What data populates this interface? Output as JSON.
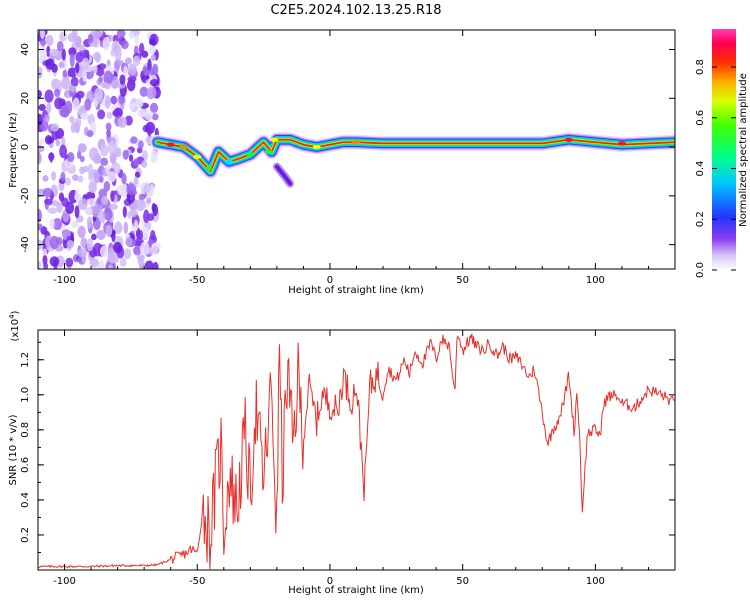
{
  "title": "C2E5.2024.102.13.25.R18",
  "colors": {
    "snr_line": "#e8302a",
    "ridge_red": "#e8102a",
    "axis": "#000000"
  },
  "chart_data": [
    {
      "type": "heatmap",
      "name": "spectrogram",
      "xlabel": "Height of straight line (km)",
      "ylabel": "Frequency (Hz)",
      "xlim": [
        -110,
        130
      ],
      "ylim": [
        -50,
        48
      ],
      "x_ticks": [
        -100,
        -50,
        0,
        50,
        100
      ],
      "x_tick_labels": [
        "-100",
        "-50",
        "0",
        "50",
        "100"
      ],
      "y_ticks": [
        -40,
        -20,
        0,
        20,
        40
      ],
      "y_tick_labels": [
        "-40",
        "-20",
        "0",
        "20",
        "40"
      ],
      "noise_region_x": [
        -110,
        -65
      ],
      "ridge": {
        "x": [
          -65,
          -60,
          -55,
          -50,
          -45,
          -42,
          -38,
          -35,
          -30,
          -25,
          -22,
          -20,
          -15,
          -10,
          -5,
          0,
          5,
          10,
          20,
          40,
          60,
          80,
          90,
          100,
          110,
          120,
          130
        ],
        "freq": [
          2,
          1,
          0,
          -4,
          -10,
          -2,
          -6,
          -5,
          -3,
          2,
          -2,
          3,
          3,
          1,
          0,
          1,
          2,
          2,
          1.5,
          1.5,
          1.5,
          1.5,
          3,
          2,
          1,
          1.5,
          2
        ]
      },
      "branch": {
        "x": [
          -20,
          -17,
          -15
        ],
        "freq": [
          -8,
          -12,
          -15
        ]
      },
      "colorbar": {
        "label": "Normalized spectral amplitude",
        "ticks": [
          0.0,
          0.2,
          0.4,
          0.6,
          0.8
        ],
        "tick_labels": [
          "0.0",
          "0.2",
          "0.4",
          "0.6",
          "0.8"
        ],
        "range": [
          0,
          0.95
        ],
        "colormap": "rainbow (white-purple-blue-cyan-green-yellow-orange-red-magenta)"
      }
    },
    {
      "type": "line",
      "name": "snr",
      "xlabel": "Height of straight line (km)",
      "ylabel": "SNR (10 * v/v)",
      "y_multiplier_label": "(x10",
      "y_multiplier_exp": "4",
      "y_multiplier_close": ")",
      "xlim": [
        -110,
        130
      ],
      "ylim": [
        0,
        1.37
      ],
      "x_ticks": [
        -100,
        -50,
        0,
        50,
        100
      ],
      "x_tick_labels": [
        "-100",
        "-50",
        "0",
        "50",
        "100"
      ],
      "y_ticks": [
        0.2,
        0.4,
        0.6,
        0.8,
        1.0,
        1.2
      ],
      "y_tick_labels": [
        "0.2",
        "0.4",
        "0.6",
        "0.8",
        "1.0",
        "1.2"
      ],
      "series": [
        {
          "name": "SNR",
          "x": [
            -110,
            -100,
            -90,
            -80,
            -70,
            -65,
            -60,
            -55,
            -52,
            -50,
            -48,
            -45,
            -43,
            -41,
            -40,
            -38,
            -35,
            -32,
            -30,
            -28,
            -25,
            -22,
            -20,
            -19,
            -18,
            -16,
            -14,
            -12,
            -10,
            -8,
            -5,
            -3,
            0,
            3,
            5,
            8,
            10,
            13,
            15,
            18,
            20,
            22,
            25,
            28,
            30,
            32,
            35,
            38,
            40,
            42,
            45,
            47,
            48,
            50,
            53,
            55,
            58,
            60,
            63,
            65,
            68,
            70,
            72,
            75,
            77,
            80,
            82,
            84,
            86,
            88,
            90,
            92,
            93,
            94,
            95,
            97,
            100,
            102,
            103,
            105,
            108,
            110,
            115,
            120,
            125,
            130
          ],
          "y": [
            0.02,
            0.02,
            0.02,
            0.025,
            0.025,
            0.03,
            0.06,
            0.09,
            0.12,
            0.09,
            0.34,
            0.2,
            0.5,
            0.72,
            0.22,
            0.55,
            0.35,
            0.78,
            0.42,
            0.95,
            0.5,
            1.05,
            0.2,
            1.36,
            0.5,
            1.15,
            0.7,
            1.1,
            0.75,
            1.05,
            0.85,
            1.0,
            0.95,
            0.9,
            1.12,
            0.96,
            1.06,
            0.45,
            1.05,
            1.12,
            1.02,
            1.15,
            1.08,
            1.2,
            1.12,
            1.25,
            1.18,
            1.3,
            1.2,
            1.32,
            1.28,
            1.0,
            1.37,
            1.25,
            1.33,
            1.28,
            1.25,
            1.3,
            1.22,
            1.28,
            1.2,
            1.22,
            1.18,
            1.1,
            1.15,
            0.9,
            0.72,
            0.8,
            0.86,
            0.95,
            1.12,
            0.78,
            1.02,
            0.8,
            0.33,
            0.78,
            0.8,
            0.77,
            0.95,
            0.99,
            1.0,
            0.95,
            0.93,
            1.03,
            1.0,
            0.95
          ]
        }
      ]
    }
  ]
}
